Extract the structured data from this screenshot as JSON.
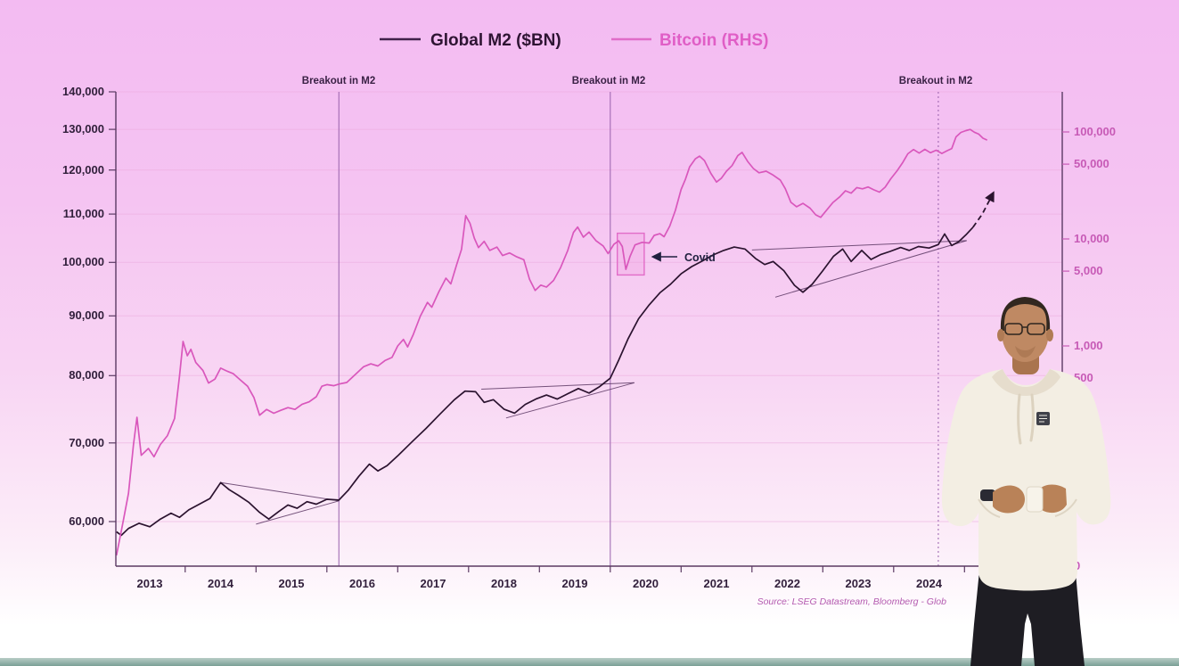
{
  "legend": {
    "series": [
      {
        "id": "global-m2",
        "label": "Global M2 ($BN)",
        "color": "#2b132f"
      },
      {
        "id": "bitcoin",
        "label": "Bitcoin (RHS)",
        "color": "#d957bc"
      }
    ]
  },
  "annotations": {
    "breakout_labels": [
      "Breakout in M2",
      "Breakout in M2",
      "Breakout in M2"
    ],
    "covid_label": "Covid",
    "source_text": "Source: LSEG Datastream, Bloomberg - Glob"
  },
  "chart_data": {
    "type": "line",
    "title": "",
    "x_axis": {
      "years": [
        "2013",
        "2014",
        "2015",
        "2016",
        "2017",
        "2018",
        "2019",
        "2020",
        "2021",
        "2022",
        "2023",
        "2024"
      ],
      "range": [
        2013,
        2026.4
      ]
    },
    "left_axis": {
      "series": "Global M2 ($BN)",
      "scale": "log",
      "ticks": [
        140000,
        130000,
        120000,
        110000,
        100000,
        90000,
        80000,
        70000,
        60000
      ],
      "tick_labels": [
        "140,000",
        "130,000",
        "120,000",
        "110,000",
        "100,000",
        "90,000",
        "80,000",
        "70,000",
        "60,000"
      ]
    },
    "right_axis": {
      "series": "Bitcoin (RHS)",
      "scale": "log",
      "ticks": [
        100000,
        50000,
        10000,
        5000,
        1000,
        500,
        0
      ],
      "tick_labels": [
        "100,000",
        "50,000",
        "10,000",
        "5,000",
        "1,000",
        "500",
        "0"
      ]
    },
    "breakout_lines": [
      {
        "year": 2016.17,
        "style": "solid"
      },
      {
        "year": 2020.0,
        "style": "solid"
      },
      {
        "year": 2024.63,
        "style": "dotted"
      }
    ],
    "covid_box": {
      "year_start": 2020.1,
      "year_end": 2020.48,
      "price_low": 4600,
      "price_high": 11300
    },
    "trendlines": [
      {
        "x1": 2014.5,
        "v1": 64800,
        "x2": 2016.17,
        "v2": 62500
      },
      {
        "x1": 2015.0,
        "v1": 59700,
        "x2": 2016.17,
        "v2": 62500
      },
      {
        "x1": 2018.18,
        "v1": 77900,
        "x2": 2020.34,
        "v2": 78900
      },
      {
        "x1": 2018.53,
        "v1": 73600,
        "x2": 2020.34,
        "v2": 78900
      },
      {
        "x1": 2022.0,
        "v1": 102500,
        "x2": 2025.03,
        "v2": 104400
      },
      {
        "x1": 2022.33,
        "v1": 93400,
        "x2": 2025.03,
        "v2": 104400
      }
    ],
    "series": [
      {
        "id": "global-m2",
        "name": "Global M2 ($BN)",
        "axis": "left",
        "color": "#2b132f",
        "points": [
          [
            2013.03,
            58800
          ],
          [
            2013.1,
            58400
          ],
          [
            2013.2,
            59200
          ],
          [
            2013.35,
            59800
          ],
          [
            2013.5,
            59400
          ],
          [
            2013.65,
            60300
          ],
          [
            2013.8,
            61000
          ],
          [
            2013.92,
            60500
          ],
          [
            2014.05,
            61400
          ],
          [
            2014.2,
            62100
          ],
          [
            2014.35,
            62800
          ],
          [
            2014.5,
            64800
          ],
          [
            2014.62,
            63900
          ],
          [
            2014.75,
            63200
          ],
          [
            2014.9,
            62300
          ],
          [
            2015.05,
            61100
          ],
          [
            2015.18,
            60300
          ],
          [
            2015.32,
            61200
          ],
          [
            2015.45,
            62000
          ],
          [
            2015.58,
            61600
          ],
          [
            2015.72,
            62400
          ],
          [
            2015.85,
            62100
          ],
          [
            2016.0,
            62700
          ],
          [
            2016.17,
            62600
          ],
          [
            2016.3,
            63800
          ],
          [
            2016.45,
            65600
          ],
          [
            2016.6,
            67200
          ],
          [
            2016.72,
            66300
          ],
          [
            2016.85,
            67000
          ],
          [
            2017.0,
            68300
          ],
          [
            2017.2,
            70200
          ],
          [
            2017.4,
            72100
          ],
          [
            2017.6,
            74200
          ],
          [
            2017.8,
            76300
          ],
          [
            2017.95,
            77600
          ],
          [
            2018.1,
            77500
          ],
          [
            2018.22,
            75900
          ],
          [
            2018.35,
            76300
          ],
          [
            2018.5,
            74900
          ],
          [
            2018.65,
            74300
          ],
          [
            2018.8,
            75600
          ],
          [
            2018.95,
            76400
          ],
          [
            2019.1,
            77000
          ],
          [
            2019.25,
            76400
          ],
          [
            2019.4,
            77200
          ],
          [
            2019.55,
            78000
          ],
          [
            2019.7,
            77300
          ],
          [
            2019.85,
            78300
          ],
          [
            2020.0,
            79600
          ],
          [
            2020.12,
            82500
          ],
          [
            2020.25,
            86000
          ],
          [
            2020.4,
            89500
          ],
          [
            2020.55,
            92000
          ],
          [
            2020.7,
            94200
          ],
          [
            2020.85,
            95800
          ],
          [
            2021.0,
            97800
          ],
          [
            2021.15,
            99200
          ],
          [
            2021.3,
            100300
          ],
          [
            2021.45,
            101500
          ],
          [
            2021.6,
            102400
          ],
          [
            2021.75,
            103100
          ],
          [
            2021.9,
            102700
          ],
          [
            2022.05,
            100800
          ],
          [
            2022.18,
            99600
          ],
          [
            2022.3,
            100200
          ],
          [
            2022.45,
            98400
          ],
          [
            2022.6,
            95600
          ],
          [
            2022.72,
            94300
          ],
          [
            2022.85,
            95800
          ],
          [
            2023.0,
            98400
          ],
          [
            2023.15,
            101200
          ],
          [
            2023.28,
            102700
          ],
          [
            2023.4,
            100200
          ],
          [
            2023.55,
            102400
          ],
          [
            2023.68,
            100600
          ],
          [
            2023.82,
            101600
          ],
          [
            2023.95,
            102200
          ],
          [
            2024.1,
            103000
          ],
          [
            2024.22,
            102400
          ],
          [
            2024.35,
            103200
          ],
          [
            2024.5,
            102900
          ],
          [
            2024.63,
            103600
          ],
          [
            2024.72,
            105800
          ],
          [
            2024.82,
            103400
          ],
          [
            2024.92,
            104200
          ],
          [
            2025.02,
            105600
          ],
          [
            2025.12,
            107200
          ]
        ],
        "projection": [
          [
            2025.12,
            107200
          ],
          [
            2025.25,
            110000
          ],
          [
            2025.4,
            114500
          ]
        ]
      },
      {
        "id": "bitcoin",
        "name": "Bitcoin (RHS)",
        "axis": "right",
        "color": "#d957bc",
        "points": [
          [
            2013.03,
            11
          ],
          [
            2013.12,
            22
          ],
          [
            2013.2,
            42
          ],
          [
            2013.27,
            120
          ],
          [
            2013.32,
            215
          ],
          [
            2013.38,
            95
          ],
          [
            2013.48,
            110
          ],
          [
            2013.56,
            92
          ],
          [
            2013.65,
            120
          ],
          [
            2013.75,
            145
          ],
          [
            2013.85,
            210
          ],
          [
            2013.92,
            520
          ],
          [
            2013.97,
            1100
          ],
          [
            2014.03,
            810
          ],
          [
            2014.08,
            930
          ],
          [
            2014.15,
            700
          ],
          [
            2014.25,
            590
          ],
          [
            2014.33,
            450
          ],
          [
            2014.42,
            490
          ],
          [
            2014.5,
            620
          ],
          [
            2014.58,
            585
          ],
          [
            2014.68,
            550
          ],
          [
            2014.78,
            480
          ],
          [
            2014.88,
            420
          ],
          [
            2014.97,
            330
          ],
          [
            2015.05,
            225
          ],
          [
            2015.15,
            255
          ],
          [
            2015.25,
            235
          ],
          [
            2015.35,
            250
          ],
          [
            2015.45,
            265
          ],
          [
            2015.55,
            255
          ],
          [
            2015.65,
            285
          ],
          [
            2015.75,
            300
          ],
          [
            2015.85,
            335
          ],
          [
            2015.93,
            420
          ],
          [
            2016.0,
            435
          ],
          [
            2016.1,
            425
          ],
          [
            2016.17,
            440
          ],
          [
            2016.28,
            455
          ],
          [
            2016.4,
            540
          ],
          [
            2016.52,
            640
          ],
          [
            2016.62,
            680
          ],
          [
            2016.72,
            650
          ],
          [
            2016.82,
            730
          ],
          [
            2016.92,
            780
          ],
          [
            2017.0,
            1000
          ],
          [
            2017.08,
            1150
          ],
          [
            2017.14,
            980
          ],
          [
            2017.22,
            1280
          ],
          [
            2017.32,
            1900
          ],
          [
            2017.42,
            2550
          ],
          [
            2017.48,
            2300
          ],
          [
            2017.58,
            3200
          ],
          [
            2017.68,
            4300
          ],
          [
            2017.75,
            3800
          ],
          [
            2017.83,
            5700
          ],
          [
            2017.9,
            8000
          ],
          [
            2017.96,
            16500
          ],
          [
            2018.02,
            14000
          ],
          [
            2018.08,
            10200
          ],
          [
            2018.14,
            8300
          ],
          [
            2018.22,
            9500
          ],
          [
            2018.3,
            7800
          ],
          [
            2018.4,
            8400
          ],
          [
            2018.48,
            7000
          ],
          [
            2018.58,
            7400
          ],
          [
            2018.68,
            6800
          ],
          [
            2018.78,
            6400
          ],
          [
            2018.86,
            4200
          ],
          [
            2018.94,
            3300
          ],
          [
            2019.02,
            3700
          ],
          [
            2019.1,
            3550
          ],
          [
            2019.2,
            4100
          ],
          [
            2019.3,
            5400
          ],
          [
            2019.4,
            7800
          ],
          [
            2019.48,
            11500
          ],
          [
            2019.54,
            12900
          ],
          [
            2019.62,
            10400
          ],
          [
            2019.7,
            11600
          ],
          [
            2019.8,
            9600
          ],
          [
            2019.9,
            8600
          ],
          [
            2019.97,
            7300
          ],
          [
            2020.05,
            8900
          ],
          [
            2020.12,
            9600
          ],
          [
            2020.17,
            8500
          ],
          [
            2020.22,
            5200
          ],
          [
            2020.28,
            6900
          ],
          [
            2020.35,
            8800
          ],
          [
            2020.45,
            9300
          ],
          [
            2020.55,
            9150
          ],
          [
            2020.62,
            10800
          ],
          [
            2020.7,
            11200
          ],
          [
            2020.76,
            10500
          ],
          [
            2020.84,
            13200
          ],
          [
            2020.92,
            18500
          ],
          [
            2021.0,
            29000
          ],
          [
            2021.06,
            36000
          ],
          [
            2021.12,
            47000
          ],
          [
            2021.2,
            56000
          ],
          [
            2021.26,
            59500
          ],
          [
            2021.33,
            54000
          ],
          [
            2021.42,
            41000
          ],
          [
            2021.5,
            34000
          ],
          [
            2021.57,
            37000
          ],
          [
            2021.64,
            43000
          ],
          [
            2021.72,
            48500
          ],
          [
            2021.8,
            60000
          ],
          [
            2021.86,
            64500
          ],
          [
            2021.94,
            53000
          ],
          [
            2022.02,
            45500
          ],
          [
            2022.1,
            41500
          ],
          [
            2022.2,
            43000
          ],
          [
            2022.3,
            39500
          ],
          [
            2022.4,
            35500
          ],
          [
            2022.47,
            29500
          ],
          [
            2022.55,
            22000
          ],
          [
            2022.63,
            20000
          ],
          [
            2022.72,
            21500
          ],
          [
            2022.82,
            19400
          ],
          [
            2022.9,
            16800
          ],
          [
            2022.97,
            15900
          ],
          [
            2023.06,
            18800
          ],
          [
            2023.14,
            21800
          ],
          [
            2023.24,
            24800
          ],
          [
            2023.32,
            28200
          ],
          [
            2023.4,
            26800
          ],
          [
            2023.48,
            30200
          ],
          [
            2023.56,
            29400
          ],
          [
            2023.64,
            30600
          ],
          [
            2023.72,
            28800
          ],
          [
            2023.8,
            27400
          ],
          [
            2023.88,
            30500
          ],
          [
            2023.96,
            36500
          ],
          [
            2024.05,
            43500
          ],
          [
            2024.13,
            52000
          ],
          [
            2024.2,
            62500
          ],
          [
            2024.28,
            68500
          ],
          [
            2024.36,
            63500
          ],
          [
            2024.44,
            68800
          ],
          [
            2024.52,
            64000
          ],
          [
            2024.6,
            67500
          ],
          [
            2024.68,
            63000
          ],
          [
            2024.75,
            66500
          ],
          [
            2024.82,
            70000
          ],
          [
            2024.88,
            90000
          ],
          [
            2024.95,
            99000
          ],
          [
            2025.02,
            103000
          ],
          [
            2025.08,
            105500
          ],
          [
            2025.14,
            99500
          ],
          [
            2025.2,
            95500
          ],
          [
            2025.26,
            87500
          ],
          [
            2025.32,
            84000
          ]
        ]
      }
    ]
  }
}
